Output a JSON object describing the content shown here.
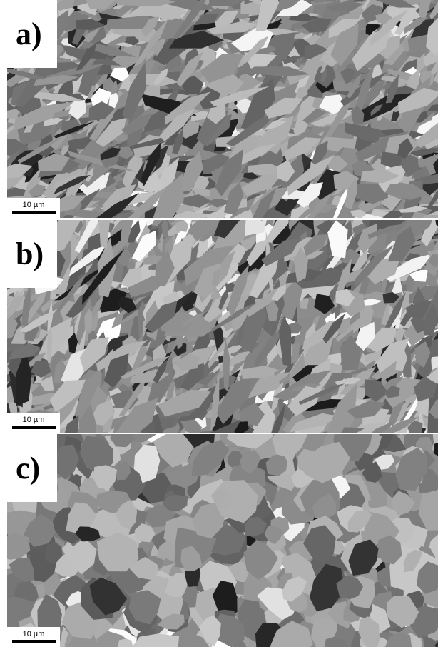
{
  "panels": [
    {
      "label": "a)",
      "scale_bar": "10 µm"
    },
    {
      "label": "b)",
      "scale_bar": "10 µm"
    },
    {
      "label": "c)",
      "scale_bar": "10 µm"
    }
  ]
}
